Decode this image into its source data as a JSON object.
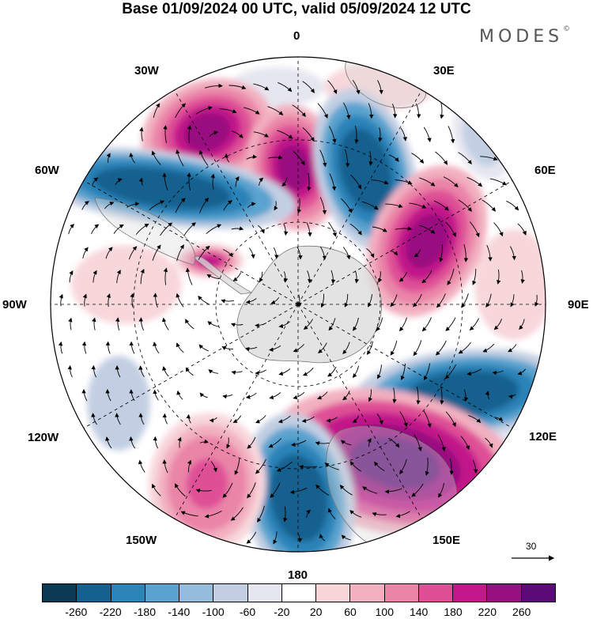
{
  "title": "Base 01/09/2024 00 UTC, valid 05/09/2024 12 UTC",
  "logo": {
    "text": "MODES",
    "mark": "©"
  },
  "map": {
    "projection": "south-polar-stereographic",
    "background_land_color": "#d9d9d9",
    "longitude_labels": {
      "top": "0",
      "top_right": "30E",
      "right_upper": "60E",
      "right": "90E",
      "right_lower": "120E",
      "bottom_right": "150E",
      "bottom": "180",
      "bottom_left": "150W",
      "left_lower": "120W",
      "left": "90W",
      "left_upper": "60W",
      "top_left": "30W"
    },
    "anomalies": [
      {
        "id": "pos-30w",
        "sign": "positive",
        "peak": 220
      },
      {
        "id": "pos-5w",
        "sign": "positive",
        "peak": 220
      },
      {
        "id": "neg-20e",
        "sign": "negative",
        "peak": -260
      },
      {
        "id": "neg-55w",
        "sign": "negative",
        "peak": -260
      },
      {
        "id": "pos-50e",
        "sign": "positive",
        "peak": 220
      },
      {
        "id": "neg-40e",
        "sign": "negative",
        "peak": -100
      },
      {
        "id": "pos-70w",
        "sign": "positive",
        "peak": 180
      },
      {
        "id": "neg-115e",
        "sign": "negative",
        "peak": -260
      },
      {
        "id": "pos-140e",
        "sign": "positive",
        "peak": 260
      },
      {
        "id": "neg-170e",
        "sign": "negative",
        "peak": -260
      },
      {
        "id": "pos-155w",
        "sign": "positive",
        "peak": 140
      }
    ]
  },
  "vector_scale": {
    "label": "30"
  },
  "colorbar": {
    "colors": [
      "#0b3a55",
      "#14618f",
      "#2b83b8",
      "#5aa3cf",
      "#93bddb",
      "#c2cfe3",
      "#e6e6f0",
      "#ffffff",
      "#f8d7db",
      "#f2b0c0",
      "#ea85a8",
      "#df4f96",
      "#c2188a",
      "#98107f",
      "#5b0a78"
    ],
    "ticks": [
      "-260",
      "-220",
      "-180",
      "-140",
      "-100",
      "-60",
      "-20",
      "20",
      "60",
      "100",
      "140",
      "180",
      "220",
      "260"
    ]
  }
}
